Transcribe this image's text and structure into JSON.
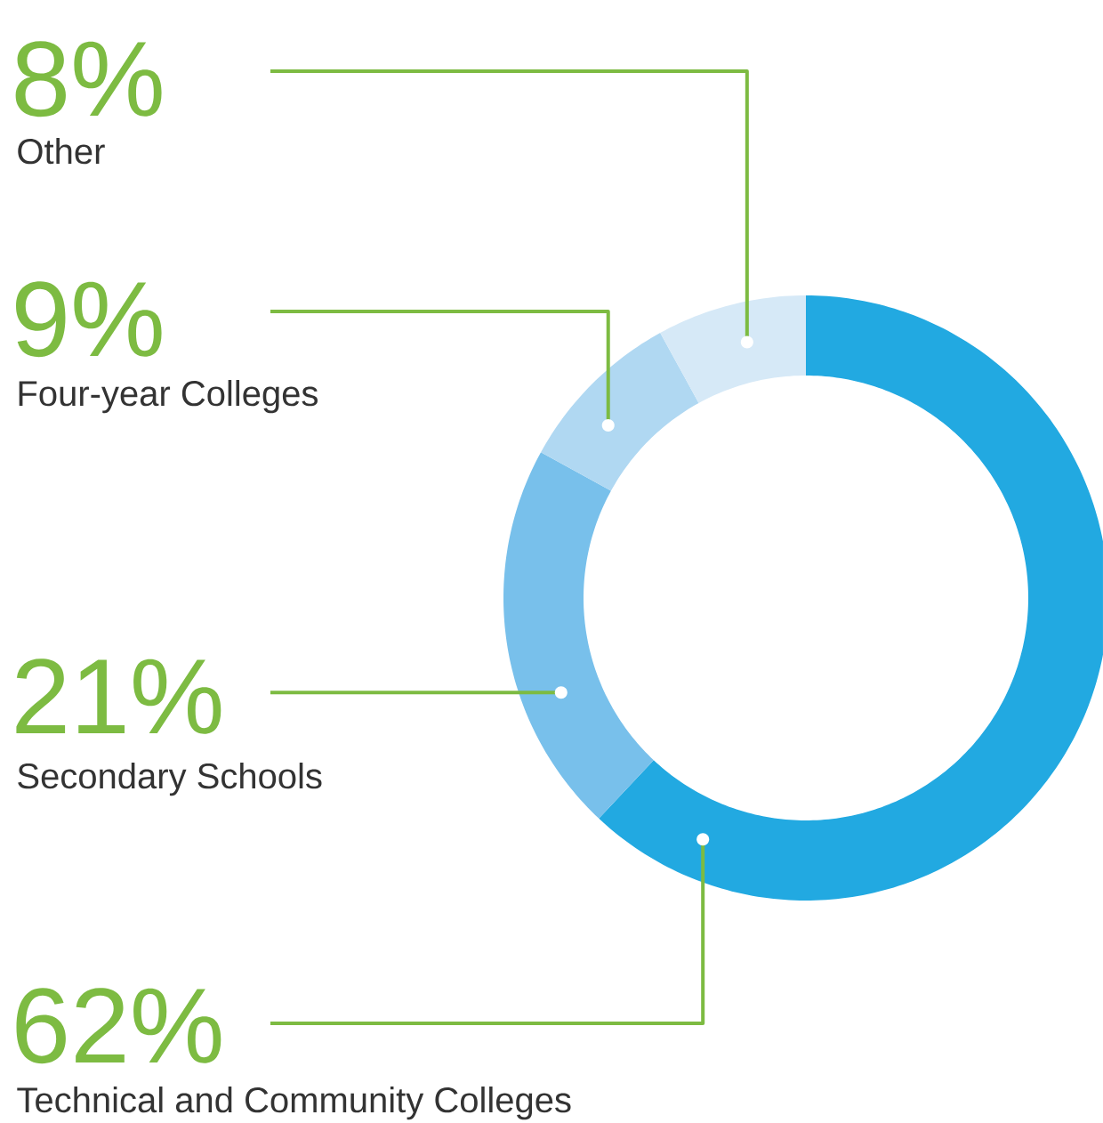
{
  "chart_data": {
    "type": "donut",
    "categories": [
      "Technical and Community Colleges",
      "Secondary Schools",
      "Four-year Colleges",
      "Other"
    ],
    "values": [
      62,
      21,
      9,
      8
    ],
    "value_labels": [
      "62%",
      "21%",
      "9%",
      "8%"
    ],
    "colors": [
      "#22a9e1",
      "#78c0eb",
      "#b0d8f2",
      "#d6e9f7"
    ]
  }
}
